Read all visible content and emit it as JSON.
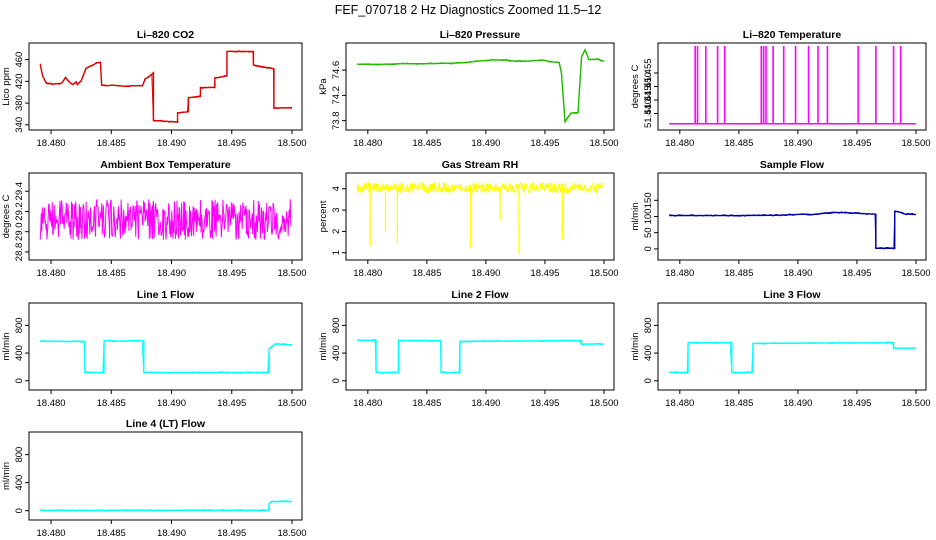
{
  "figure": {
    "title": "FEF_070718  2 Hz Diagnostics Zoomed 11.5–12"
  },
  "chart_data": [
    {
      "type": "line",
      "title": "Li–820 CO2",
      "ylabel": "Lico ppm",
      "color": "#dd0000",
      "xlim": [
        18.479,
        18.5
      ],
      "ylim": [
        336,
        485
      ],
      "xticks": [
        18.48,
        18.485,
        18.49,
        18.495,
        18.5
      ],
      "xtick_labels": [
        "18.480",
        "18.485",
        "18.490",
        "18.495",
        "18.500"
      ],
      "yticks": [
        340,
        380,
        420,
        460
      ],
      "ytick_labels": [
        "340",
        "380",
        "420",
        "460"
      ],
      "x": [
        18.4791,
        18.4793,
        18.4796,
        18.4801,
        18.4807,
        18.4809,
        18.4812,
        18.4815,
        18.4818,
        18.4821,
        18.4822,
        18.4825,
        18.4829,
        18.4834,
        18.4838,
        18.4841,
        18.4842,
        18.4845,
        18.4852,
        18.486,
        18.487,
        18.4876,
        18.4878,
        18.4882,
        18.4885,
        18.4885,
        18.4905,
        18.4905,
        18.4914,
        18.4914,
        18.4924,
        18.4924,
        18.4936,
        18.4936,
        18.4946,
        18.4946,
        18.4968,
        18.4968,
        18.4985,
        18.4985,
        18.5
      ],
      "y": [
        451,
        430,
        417,
        415,
        416,
        417,
        427,
        419,
        414,
        419,
        414,
        421,
        444,
        449,
        454,
        455,
        413,
        412,
        413,
        411,
        412,
        412,
        424,
        430,
        436,
        348,
        345,
        362,
        364,
        390,
        392,
        408,
        409,
        426,
        430,
        475,
        475,
        450,
        443,
        371,
        371
      ]
    },
    {
      "type": "line",
      "title": "Li–820 Pressure",
      "ylabel": "kPa",
      "color": "#22bb00",
      "xlim": [
        18.479,
        18.5
      ],
      "ylim": [
        73.7,
        74.98
      ],
      "xticks": [
        18.48,
        18.485,
        18.49,
        18.495,
        18.5
      ],
      "xtick_labels": [
        "18.480",
        "18.485",
        "18.490",
        "18.495",
        "18.500"
      ],
      "yticks": [
        73.8,
        74.2,
        74.6
      ],
      "ytick_labels": [
        "73.8",
        "74.2",
        "74.6"
      ],
      "x": [
        18.4791,
        18.481,
        18.483,
        18.485,
        18.4875,
        18.4885,
        18.4892,
        18.4905,
        18.4915,
        18.4925,
        18.4935,
        18.4948,
        18.4955,
        18.4962,
        18.4964,
        18.4967,
        18.4972,
        18.4978,
        18.4981,
        18.4984,
        18.4987,
        18.4995,
        18.5
      ],
      "y": [
        74.69,
        74.69,
        74.7,
        74.7,
        74.71,
        74.72,
        74.74,
        74.76,
        74.76,
        74.74,
        74.74,
        74.76,
        74.73,
        74.72,
        74.55,
        73.78,
        73.92,
        73.93,
        74.81,
        74.92,
        74.77,
        74.77,
        74.74
      ]
    },
    {
      "type": "line",
      "title": "Li–820 Temperature",
      "ylabel": "degrees C",
      "color": "#ff00ff",
      "xlim": [
        18.479,
        18.5
      ],
      "ylim": [
        51.435,
        51.465
      ],
      "xticks": [
        18.48,
        18.485,
        18.49,
        18.495,
        18.5
      ],
      "xtick_labels": [
        "18.480",
        "18.485",
        "18.490",
        "18.495",
        "18.500"
      ],
      "yticks": [
        51.44,
        51.445,
        51.45,
        51.455
      ],
      "ytick_labels": [
        "51.440",
        "51.445",
        "51.450",
        "51.455"
      ],
      "baseline": 51.4362,
      "peak": 51.465,
      "spikes": [
        18.4813,
        18.4815,
        18.4822,
        18.4832,
        18.4838,
        18.4869,
        18.4871,
        18.4873,
        18.4879,
        18.4888,
        18.4898,
        18.4909,
        18.4917,
        18.4925,
        18.4951,
        18.4966,
        18.4981,
        18.4987
      ]
    },
    {
      "type": "line",
      "title": "Ambient Box Temperature",
      "ylabel": "degrees C",
      "color": "#ff00ff",
      "xlim": [
        18.479,
        18.5
      ],
      "ylim": [
        28.75,
        29.55
      ],
      "xticks": [
        18.48,
        18.485,
        18.49,
        18.495,
        18.5
      ],
      "xtick_labels": [
        "18.480",
        "18.485",
        "18.490",
        "18.495",
        "18.500"
      ],
      "yticks": [
        28.8,
        29.0,
        29.2,
        29.4
      ],
      "ytick_labels": [
        "28.8",
        "29.0",
        "29.2",
        "29.4"
      ],
      "noise": {
        "center": 29.12,
        "amplitude": 0.2,
        "samples": 160
      }
    },
    {
      "type": "line",
      "title": "Gas Stream RH",
      "ylabel": "percent",
      "color": "#ffff00",
      "xlim": [
        18.479,
        18.5
      ],
      "ylim": [
        0.8,
        4.6
      ],
      "xticks": [
        18.48,
        18.485,
        18.49,
        18.495,
        18.5
      ],
      "xtick_labels": [
        "18.480",
        "18.485",
        "18.490",
        "18.495",
        "18.500"
      ],
      "yticks": [
        1,
        2,
        3,
        4
      ],
      "ytick_labels": [
        "1",
        "2",
        "3",
        "4"
      ],
      "noise": {
        "center": 4.05,
        "amplitude": 0.25,
        "samples": 160
      },
      "dips_x": [
        18.4802,
        18.4815,
        18.4825,
        18.4887,
        18.4912,
        18.4928,
        18.4965
      ],
      "dips_y": [
        1.3,
        2.0,
        1.5,
        1.2,
        2.5,
        0.95,
        1.6
      ]
    },
    {
      "type": "line",
      "title": "Sample Flow",
      "ylabel": "ml/min",
      "color": "#0000aa",
      "xlim": [
        18.479,
        18.5
      ],
      "ylim": [
        -25,
        225
      ],
      "xticks": [
        18.48,
        18.485,
        18.49,
        18.495,
        18.5
      ],
      "xtick_labels": [
        "18.480",
        "18.485",
        "18.490",
        "18.495",
        "18.500"
      ],
      "yticks": [
        0,
        50,
        100,
        150
      ],
      "ytick_labels": [
        "0",
        "50",
        "100",
        "150"
      ],
      "x": [
        18.4791,
        18.4855,
        18.4885,
        18.4905,
        18.491,
        18.493,
        18.4945,
        18.4966,
        18.4966,
        18.4982,
        18.4982,
        18.4985,
        18.499,
        18.5
      ],
      "y": [
        103,
        103,
        104,
        107,
        105,
        113,
        111,
        107,
        2,
        2,
        116,
        115,
        108,
        106
      ]
    },
    {
      "type": "line",
      "title": "Line 1 Flow",
      "ylabel": "ml/min",
      "color": "#00ffff",
      "xlim": [
        18.479,
        18.5
      ],
      "ylim": [
        -90,
        1080
      ],
      "xticks": [
        18.48,
        18.485,
        18.49,
        18.495,
        18.5
      ],
      "xtick_labels": [
        "18.480",
        "18.485",
        "18.490",
        "18.495",
        "18.500"
      ],
      "yticks": [
        0,
        400,
        800
      ],
      "ytick_labels": [
        "0",
        "400",
        "800"
      ],
      "x": [
        18.4791,
        18.4828,
        18.4828,
        18.4844,
        18.4844,
        18.4877,
        18.4877,
        18.4981,
        18.4981,
        18.4986,
        18.5
      ],
      "y": [
        570,
        570,
        120,
        120,
        575,
        575,
        120,
        120,
        460,
        530,
        520
      ]
    },
    {
      "type": "line",
      "title": "Line 2 Flow",
      "ylabel": "ml/min",
      "color": "#00ffff",
      "xlim": [
        18.479,
        18.5
      ],
      "ylim": [
        -90,
        1080
      ],
      "xticks": [
        18.48,
        18.485,
        18.49,
        18.495,
        18.5
      ],
      "xtick_labels": [
        "18.480",
        "18.485",
        "18.490",
        "18.495",
        "18.500"
      ],
      "yticks": [
        0,
        400,
        800
      ],
      "ytick_labels": [
        "0",
        "400",
        "800"
      ],
      "x": [
        18.4791,
        18.4807,
        18.4807,
        18.4826,
        18.4826,
        18.4862,
        18.4862,
        18.4878,
        18.4878,
        18.4981,
        18.4981,
        18.5
      ],
      "y": [
        585,
        585,
        120,
        120,
        580,
        580,
        120,
        120,
        570,
        580,
        530,
        530
      ]
    },
    {
      "type": "line",
      "title": "Line 3 Flow",
      "ylabel": "ml/min",
      "color": "#00ffff",
      "xlim": [
        18.479,
        18.5
      ],
      "ylim": [
        -90,
        1080
      ],
      "xticks": [
        18.48,
        18.485,
        18.49,
        18.495,
        18.5
      ],
      "xtick_labels": [
        "18.480",
        "18.485",
        "18.490",
        "18.495",
        "18.500"
      ],
      "yticks": [
        0,
        400,
        800
      ],
      "ytick_labels": [
        "0",
        "400",
        "800"
      ],
      "x": [
        18.4791,
        18.4807,
        18.4807,
        18.4844,
        18.4844,
        18.4862,
        18.4862,
        18.4981,
        18.4981,
        18.5
      ],
      "y": [
        120,
        120,
        550,
        550,
        120,
        120,
        540,
        550,
        470,
        470
      ]
    },
    {
      "type": "line",
      "title": "Line 4 (LT) Flow",
      "ylabel": "ml/min",
      "color": "#00ffff",
      "xlim": [
        18.479,
        18.5
      ],
      "ylim": [
        -90,
        1080
      ],
      "xticks": [
        18.48,
        18.485,
        18.49,
        18.495,
        18.5
      ],
      "xtick_labels": [
        "18.480",
        "18.485",
        "18.490",
        "18.495",
        "18.500"
      ],
      "yticks": [
        0,
        400,
        800
      ],
      "ytick_labels": [
        "0",
        "400",
        "800"
      ],
      "x": [
        18.4791,
        18.4981,
        18.4981,
        18.4983,
        18.5
      ],
      "y": [
        5,
        5,
        100,
        130,
        130
      ]
    }
  ]
}
